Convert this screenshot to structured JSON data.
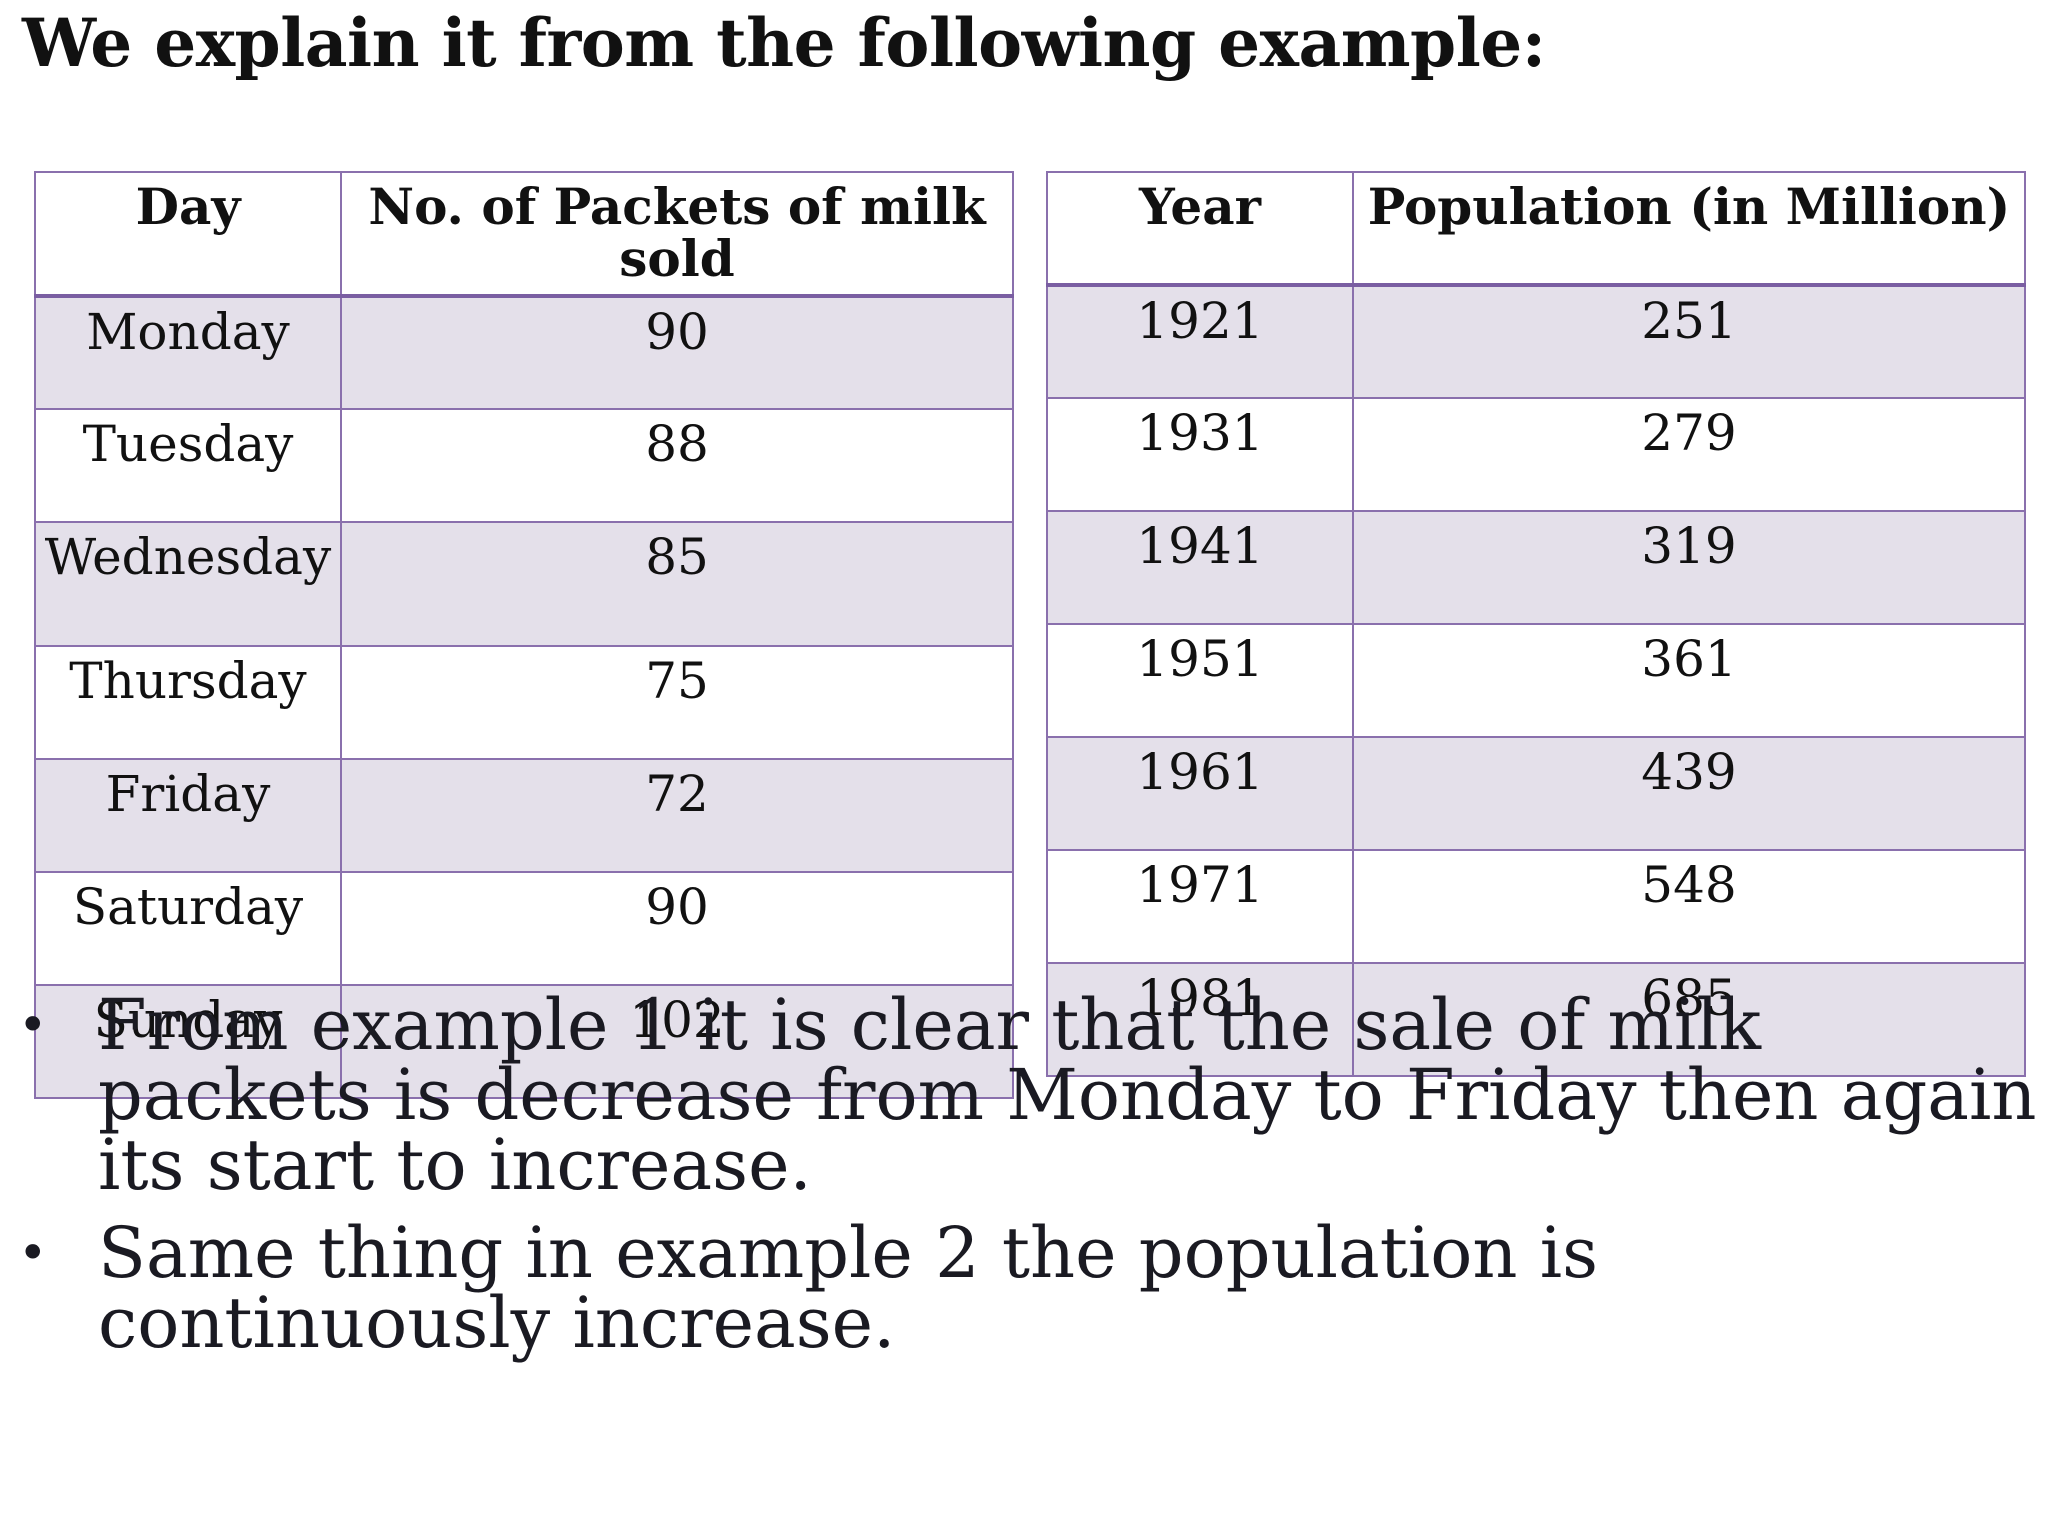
{
  "title": "We explain it from the following example:",
  "milk_table": {
    "headers": [
      "Day",
      "No. of Packets of milk sold"
    ],
    "rows": [
      {
        "day": "Monday",
        "packets": "90"
      },
      {
        "day": "Tuesday",
        "packets": "88"
      },
      {
        "day": "Wednesday",
        "packets": "85"
      },
      {
        "day": "Thursday",
        "packets": "75"
      },
      {
        "day": "Friday",
        "packets": "72"
      },
      {
        "day": "Saturday",
        "packets": "90"
      },
      {
        "day": "Sunday",
        "packets": "102"
      }
    ]
  },
  "population_table": {
    "headers": [
      "Year",
      "Population (in Million)"
    ],
    "rows": [
      {
        "year": "1921",
        "population": "251"
      },
      {
        "year": "1931",
        "population": "279"
      },
      {
        "year": "1941",
        "population": "319"
      },
      {
        "year": "1951",
        "population": "361"
      },
      {
        "year": "1961",
        "population": "439"
      },
      {
        "year": "1971",
        "population": "548"
      },
      {
        "year": "1981",
        "population": "685"
      }
    ]
  },
  "bullets": [
    {
      "marker": "•",
      "text": "From example 1 it is clear that the sale of milk packets is decrease from Monday to Friday then again its start to increase."
    },
    {
      "marker": "•",
      "text": "Same thing in example 2 the population is continuously increase."
    }
  ],
  "colors": {
    "table_border": "#8a70ad",
    "band_fill": "#e4e0ea"
  }
}
